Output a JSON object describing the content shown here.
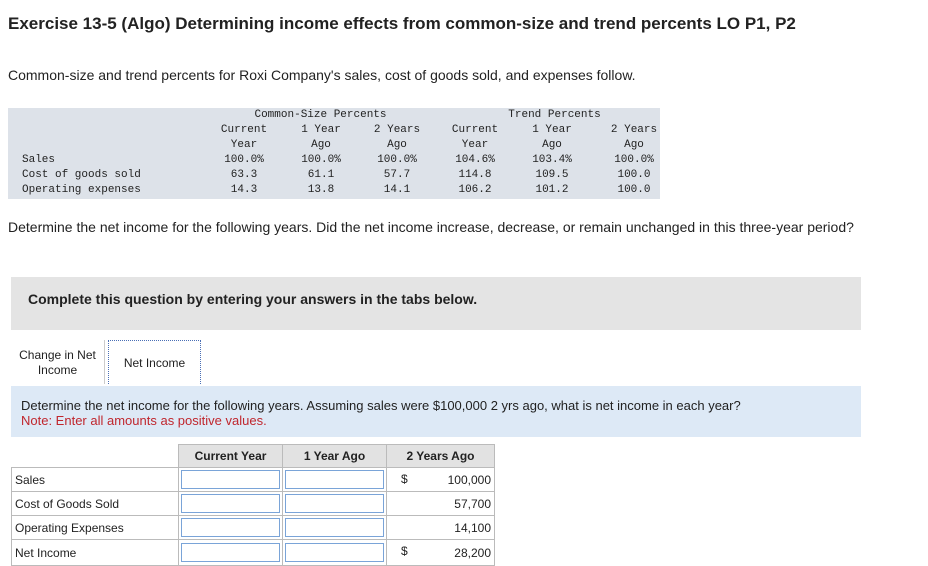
{
  "header": {
    "title": "Exercise 13-5 (Algo) Determining income effects from common-size and trend percents LO P1, P2"
  },
  "intro": "Common-size and trend percents for Roxi Company's sales, cost of goods sold, and expenses follow.",
  "percent_table": {
    "groups": [
      "Common-Size Percents",
      "Trend Percents"
    ],
    "columns": [
      "Current Year",
      "1 Year Ago",
      "2 Years Ago",
      "Current Year",
      "1 Year Ago",
      "2 Years Ago"
    ],
    "rows": [
      {
        "label": "Sales",
        "values": [
          "100.0%",
          "100.0%",
          "100.0%",
          "104.6%",
          "103.4%",
          "100.0%"
        ]
      },
      {
        "label": "Cost of goods sold",
        "values": [
          "63.3",
          "61.1",
          "57.7",
          "114.8",
          "109.5",
          "100.0"
        ]
      },
      {
        "label": "Operating expenses",
        "values": [
          "14.3",
          "13.8",
          "14.1",
          "106.2",
          "101.2",
          "100.0"
        ]
      }
    ]
  },
  "question": "Determine the net income for the following years. Did the net income increase, decrease, or remain unchanged in this three-year period?",
  "banner": "Complete this question by entering your answers in the tabs below.",
  "tabs": [
    "Change in Net Income",
    "Net Income"
  ],
  "instruction": "Determine the net income for the following years. Assuming sales were $100,000 2 yrs ago, what is net income in each year?",
  "note": "Note: Enter all amounts as positive values.",
  "answer_table": {
    "columns": [
      "Current Year",
      "1 Year Ago",
      "2 Years Ago"
    ],
    "rows": [
      {
        "label": "Sales",
        "currency": "$",
        "two_years_ago": "100,000"
      },
      {
        "label": "Cost of Goods Sold",
        "two_years_ago": "57,700"
      },
      {
        "label": "Operating Expenses",
        "two_years_ago": "14,100"
      },
      {
        "label": "Net Income",
        "currency": "$",
        "two_years_ago": "28,200"
      }
    ]
  }
}
